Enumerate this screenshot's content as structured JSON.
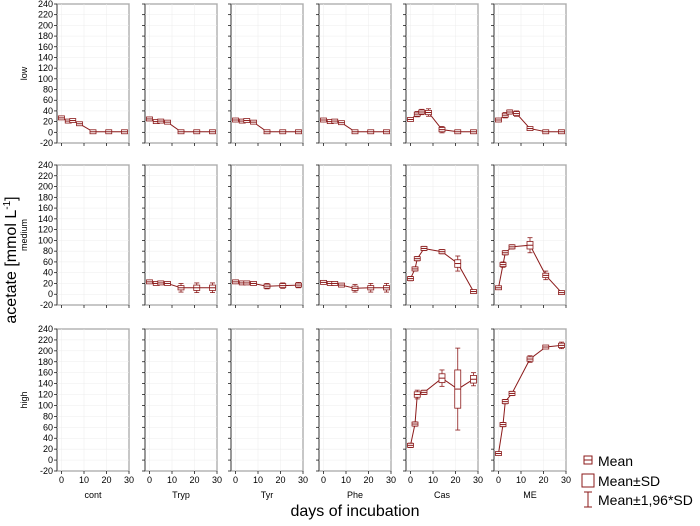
{
  "chart_data": {
    "type": "line",
    "title": "",
    "ylabel": "acetate [mmol L",
    "ylabel_sup": "-1",
    "ylabel_close": "]",
    "xlabel": "days of incubation",
    "ylim": [
      -20,
      240
    ],
    "yticks": [
      -20,
      0,
      20,
      40,
      60,
      80,
      100,
      120,
      140,
      160,
      180,
      200,
      220,
      240
    ],
    "xlim": [
      -2,
      30
    ],
    "xticks": [
      0,
      10,
      20,
      30
    ],
    "columns": [
      "cont",
      "Tryp",
      "Tyr",
      "Phe",
      "Cas",
      "ME"
    ],
    "rows": [
      "low",
      "medium",
      "high"
    ],
    "legend_position": "bottom-right",
    "legend": [
      "Mean",
      "Mean±SD",
      "Mean±1,96*SD"
    ],
    "color": "#8b1a1a",
    "panels": {
      "low": {
        "cont": [
          {
            "x": 0,
            "mean": 27,
            "sd": 2,
            "ci": 3
          },
          {
            "x": 3,
            "mean": 21,
            "sd": 2,
            "ci": 3
          },
          {
            "x": 5,
            "mean": 22,
            "sd": 2,
            "ci": 3
          },
          {
            "x": 8,
            "mean": 16,
            "sd": 2,
            "ci": 3
          },
          {
            "x": 14,
            "mean": 1,
            "sd": 1,
            "ci": 1.5
          },
          {
            "x": 21,
            "mean": 1,
            "sd": 1,
            "ci": 1.5
          },
          {
            "x": 28,
            "mean": 1,
            "sd": 1,
            "ci": 1.5
          }
        ],
        "Tryp": [
          {
            "x": 0,
            "mean": 25,
            "sd": 2,
            "ci": 3
          },
          {
            "x": 3,
            "mean": 20,
            "sd": 2,
            "ci": 3
          },
          {
            "x": 5,
            "mean": 21,
            "sd": 2,
            "ci": 3
          },
          {
            "x": 8,
            "mean": 19,
            "sd": 2,
            "ci": 3
          },
          {
            "x": 14,
            "mean": 1,
            "sd": 1,
            "ci": 1.5
          },
          {
            "x": 21,
            "mean": 1,
            "sd": 1,
            "ci": 1.5
          },
          {
            "x": 28,
            "mean": 1,
            "sd": 1,
            "ci": 1.5
          }
        ],
        "Tyr": [
          {
            "x": 0,
            "mean": 23,
            "sd": 2,
            "ci": 3
          },
          {
            "x": 3,
            "mean": 21,
            "sd": 2,
            "ci": 3
          },
          {
            "x": 5,
            "mean": 22,
            "sd": 2,
            "ci": 3
          },
          {
            "x": 8,
            "mean": 19,
            "sd": 2,
            "ci": 3
          },
          {
            "x": 14,
            "mean": 1,
            "sd": 1,
            "ci": 1.5
          },
          {
            "x": 21,
            "mean": 1,
            "sd": 1,
            "ci": 1.5
          },
          {
            "x": 28,
            "mean": 1,
            "sd": 1,
            "ci": 1.5
          }
        ],
        "Phe": [
          {
            "x": 0,
            "mean": 23,
            "sd": 2,
            "ci": 3
          },
          {
            "x": 3,
            "mean": 20,
            "sd": 2,
            "ci": 3
          },
          {
            "x": 5,
            "mean": 21,
            "sd": 2,
            "ci": 3
          },
          {
            "x": 8,
            "mean": 18,
            "sd": 2,
            "ci": 3
          },
          {
            "x": 14,
            "mean": 1,
            "sd": 1,
            "ci": 1.5
          },
          {
            "x": 21,
            "mean": 1,
            "sd": 1,
            "ci": 1.5
          },
          {
            "x": 28,
            "mean": 1,
            "sd": 1,
            "ci": 1.5
          }
        ],
        "Cas": [
          {
            "x": 0,
            "mean": 24,
            "sd": 2,
            "ci": 3
          },
          {
            "x": 3,
            "mean": 34,
            "sd": 3,
            "ci": 5
          },
          {
            "x": 5,
            "mean": 38,
            "sd": 3,
            "ci": 5
          },
          {
            "x": 8,
            "mean": 37,
            "sd": 4,
            "ci": 7
          },
          {
            "x": 14,
            "mean": 5,
            "sd": 4,
            "ci": 6
          },
          {
            "x": 21,
            "mean": 1,
            "sd": 1,
            "ci": 1.5
          },
          {
            "x": 28,
            "mean": 1,
            "sd": 1,
            "ci": 1.5
          }
        ],
        "ME": [
          {
            "x": 0,
            "mean": 23,
            "sd": 2,
            "ci": 3
          },
          {
            "x": 3,
            "mean": 32,
            "sd": 3,
            "ci": 5
          },
          {
            "x": 5,
            "mean": 38,
            "sd": 3,
            "ci": 4
          },
          {
            "x": 8,
            "mean": 35,
            "sd": 3,
            "ci": 5
          },
          {
            "x": 14,
            "mean": 7,
            "sd": 2,
            "ci": 3
          },
          {
            "x": 21,
            "mean": 1,
            "sd": 1,
            "ci": 1.5
          },
          {
            "x": 28,
            "mean": 1,
            "sd": 1,
            "ci": 1.5
          }
        ]
      },
      "medium": {
        "cont": [],
        "Tryp": [
          {
            "x": 0,
            "mean": 23,
            "sd": 2,
            "ci": 3
          },
          {
            "x": 3,
            "mean": 20,
            "sd": 2,
            "ci": 3
          },
          {
            "x": 5,
            "mean": 21,
            "sd": 2,
            "ci": 3
          },
          {
            "x": 8,
            "mean": 20,
            "sd": 2,
            "ci": 3
          },
          {
            "x": 14,
            "mean": 12,
            "sd": 4,
            "ci": 8
          },
          {
            "x": 21,
            "mean": 12,
            "sd": 5,
            "ci": 9
          },
          {
            "x": 28,
            "mean": 12,
            "sd": 5,
            "ci": 9
          }
        ],
        "Tyr": [
          {
            "x": 0,
            "mean": 23,
            "sd": 2,
            "ci": 3
          },
          {
            "x": 3,
            "mean": 21,
            "sd": 2,
            "ci": 3
          },
          {
            "x": 5,
            "mean": 21,
            "sd": 2,
            "ci": 3
          },
          {
            "x": 8,
            "mean": 20,
            "sd": 2,
            "ci": 3
          },
          {
            "x": 14,
            "mean": 15,
            "sd": 3,
            "ci": 5
          },
          {
            "x": 21,
            "mean": 16,
            "sd": 3,
            "ci": 5
          },
          {
            "x": 28,
            "mean": 17,
            "sd": 3,
            "ci": 5
          }
        ],
        "Phe": [
          {
            "x": 0,
            "mean": 22,
            "sd": 2,
            "ci": 3
          },
          {
            "x": 3,
            "mean": 20,
            "sd": 2,
            "ci": 3
          },
          {
            "x": 5,
            "mean": 20,
            "sd": 2,
            "ci": 3
          },
          {
            "x": 8,
            "mean": 17,
            "sd": 2,
            "ci": 3
          },
          {
            "x": 14,
            "mean": 11,
            "sd": 4,
            "ci": 7
          },
          {
            "x": 21,
            "mean": 12,
            "sd": 4,
            "ci": 8
          },
          {
            "x": 28,
            "mean": 12,
            "sd": 4,
            "ci": 8
          }
        ],
        "Cas": [
          {
            "x": 0,
            "mean": 29,
            "sd": 3,
            "ci": 4
          },
          {
            "x": 2,
            "mean": 47,
            "sd": 3,
            "ci": 4
          },
          {
            "x": 3,
            "mean": 66,
            "sd": 3,
            "ci": 4
          },
          {
            "x": 6,
            "mean": 85,
            "sd": 3,
            "ci": 4
          },
          {
            "x": 14,
            "mean": 79,
            "sd": 3,
            "ci": 4
          },
          {
            "x": 21,
            "mean": 57,
            "sd": 7,
            "ci": 14
          },
          {
            "x": 28,
            "mean": 5,
            "sd": 2,
            "ci": 3
          }
        ],
        "ME": [
          {
            "x": 0,
            "mean": 12,
            "sd": 2,
            "ci": 3
          },
          {
            "x": 2,
            "mean": 55,
            "sd": 3,
            "ci": 5
          },
          {
            "x": 3,
            "mean": 77,
            "sd": 3,
            "ci": 4
          },
          {
            "x": 6,
            "mean": 88,
            "sd": 3,
            "ci": 4
          },
          {
            "x": 14,
            "mean": 91,
            "sd": 7,
            "ci": 14
          },
          {
            "x": 21,
            "mean": 35,
            "sd": 4,
            "ci": 8
          },
          {
            "x": 28,
            "mean": 3,
            "sd": 2,
            "ci": 3
          }
        ]
      },
      "high": {
        "cont": [],
        "Tryp": [],
        "Tyr": [],
        "Phe": [],
        "Cas": [
          {
            "x": 0,
            "mean": 27,
            "sd": 3,
            "ci": 4
          },
          {
            "x": 2,
            "mean": 66,
            "sd": 3,
            "ci": 4
          },
          {
            "x": 3,
            "mean": 120,
            "sd": 5,
            "ci": 8
          },
          {
            "x": 6,
            "mean": 124,
            "sd": 3,
            "ci": 4
          },
          {
            "x": 14,
            "mean": 150,
            "sd": 8,
            "ci": 15
          },
          {
            "x": 21,
            "mean": 130,
            "sd": 35,
            "ci": 75
          },
          {
            "x": 28,
            "mean": 148,
            "sd": 7,
            "ci": 12
          }
        ],
        "ME": [
          {
            "x": 0,
            "mean": 12,
            "sd": 2,
            "ci": 3
          },
          {
            "x": 2,
            "mean": 65,
            "sd": 3,
            "ci": 4
          },
          {
            "x": 3,
            "mean": 107,
            "sd": 3,
            "ci": 4
          },
          {
            "x": 6,
            "mean": 122,
            "sd": 3,
            "ci": 4
          },
          {
            "x": 14,
            "mean": 185,
            "sd": 4,
            "ci": 6
          },
          {
            "x": 21,
            "mean": 207,
            "sd": 2,
            "ci": 3
          },
          {
            "x": 28,
            "mean": 210,
            "sd": 4,
            "ci": 6
          }
        ]
      }
    }
  }
}
